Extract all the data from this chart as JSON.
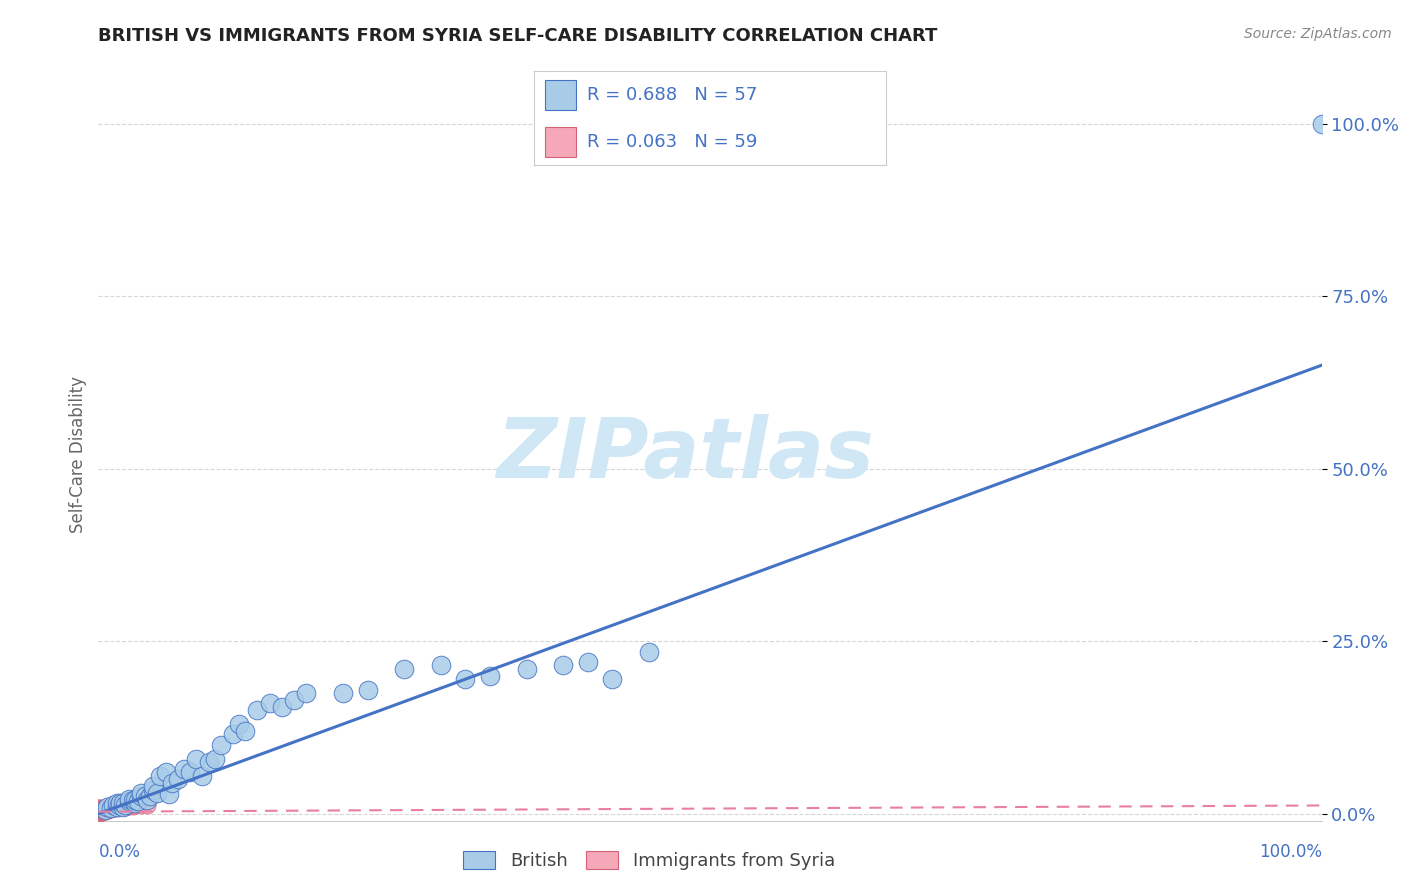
{
  "title": "BRITISH VS IMMIGRANTS FROM SYRIA SELF-CARE DISABILITY CORRELATION CHART",
  "source": "Source: ZipAtlas.com",
  "ylabel": "Self-Care Disability",
  "ytick_labels": [
    "0.0%",
    "25.0%",
    "50.0%",
    "75.0%",
    "100.0%"
  ],
  "ytick_values": [
    0.0,
    0.25,
    0.5,
    0.75,
    1.0
  ],
  "xlim": [
    0.0,
    1.0
  ],
  "ylim": [
    -0.01,
    1.05
  ],
  "british_R": 0.688,
  "british_N": 57,
  "syria_R": 0.063,
  "syria_N": 59,
  "british_color": "#A8CCE8",
  "syria_color": "#F4A8B8",
  "british_line_color": "#4472C4",
  "syria_line_color": "#E87FA0",
  "british_marker_edge": "#4472C4",
  "syria_marker_edge": "#D4607A",
  "watermark_text": "ZIPatlas",
  "watermark_color": "#D0E8F5",
  "british_x": [
    0.005,
    0.007,
    0.01,
    0.012,
    0.015,
    0.015,
    0.017,
    0.018,
    0.02,
    0.02,
    0.022,
    0.025,
    0.025,
    0.028,
    0.03,
    0.03,
    0.032,
    0.035,
    0.035,
    0.038,
    0.04,
    0.042,
    0.045,
    0.045,
    0.048,
    0.05,
    0.055,
    0.058,
    0.06,
    0.065,
    0.07,
    0.075,
    0.08,
    0.085,
    0.09,
    0.095,
    0.1,
    0.11,
    0.115,
    0.12,
    0.13,
    0.14,
    0.15,
    0.16,
    0.17,
    0.2,
    0.22,
    0.25,
    0.28,
    0.3,
    0.32,
    0.35,
    0.38,
    0.4,
    0.42,
    0.45,
    1.0
  ],
  "british_y": [
    0.005,
    0.01,
    0.008,
    0.012,
    0.01,
    0.015,
    0.012,
    0.015,
    0.01,
    0.015,
    0.012,
    0.018,
    0.022,
    0.02,
    0.015,
    0.02,
    0.018,
    0.025,
    0.03,
    0.025,
    0.02,
    0.025,
    0.035,
    0.04,
    0.03,
    0.055,
    0.06,
    0.028,
    0.045,
    0.05,
    0.065,
    0.06,
    0.08,
    0.055,
    0.075,
    0.08,
    0.1,
    0.115,
    0.13,
    0.12,
    0.15,
    0.16,
    0.155,
    0.165,
    0.175,
    0.175,
    0.18,
    0.21,
    0.215,
    0.195,
    0.2,
    0.21,
    0.215,
    0.22,
    0.195,
    0.235,
    1.0
  ],
  "syria_x": [
    0.0,
    0.0,
    0.0,
    0.0,
    0.0,
    0.0,
    0.0,
    0.0,
    0.0,
    0.0,
    0.001,
    0.001,
    0.001,
    0.001,
    0.001,
    0.001,
    0.001,
    0.001,
    0.002,
    0.002,
    0.002,
    0.002,
    0.002,
    0.002,
    0.003,
    0.003,
    0.003,
    0.003,
    0.003,
    0.003,
    0.004,
    0.004,
    0.004,
    0.004,
    0.004,
    0.005,
    0.005,
    0.005,
    0.005,
    0.006,
    0.006,
    0.006,
    0.007,
    0.007,
    0.008,
    0.008,
    0.009,
    0.01,
    0.012,
    0.013,
    0.015,
    0.018,
    0.02,
    0.022,
    0.025,
    0.028,
    0.03,
    0.035,
    0.04
  ],
  "syria_y": [
    0.0,
    0.002,
    0.003,
    0.004,
    0.005,
    0.005,
    0.006,
    0.007,
    0.008,
    0.008,
    0.002,
    0.003,
    0.004,
    0.005,
    0.005,
    0.006,
    0.007,
    0.008,
    0.003,
    0.004,
    0.005,
    0.005,
    0.006,
    0.007,
    0.003,
    0.004,
    0.005,
    0.005,
    0.006,
    0.007,
    0.004,
    0.004,
    0.005,
    0.006,
    0.007,
    0.004,
    0.005,
    0.006,
    0.007,
    0.005,
    0.006,
    0.007,
    0.005,
    0.006,
    0.006,
    0.007,
    0.007,
    0.008,
    0.008,
    0.008,
    0.009,
    0.01,
    0.01,
    0.01,
    0.011,
    0.011,
    0.012,
    0.012,
    0.013
  ],
  "british_line_x": [
    0.0,
    1.0
  ],
  "british_line_y": [
    0.0,
    0.65
  ],
  "syria_line_x": [
    0.0,
    1.0
  ],
  "syria_line_y": [
    0.003,
    0.012
  ]
}
